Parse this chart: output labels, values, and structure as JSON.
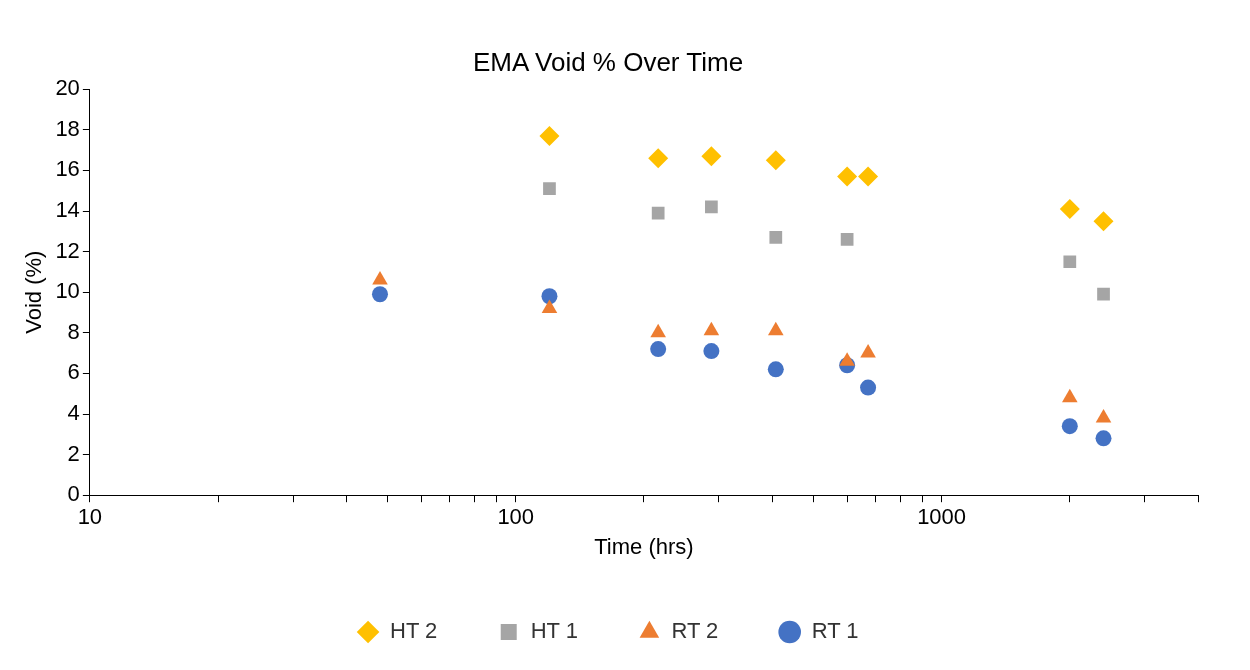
{
  "chart_data": {
    "type": "scatter",
    "title": "EMA Void % Over Time",
    "xlabel": "Time (hrs)",
    "ylabel": "Void (%)",
    "x": [
      48,
      120,
      216,
      288,
      408,
      600,
      672,
      2000,
      2400
    ],
    "series": [
      {
        "name": "HT 2",
        "color": "#ffc000",
        "marker": "diamond",
        "values": [
          null,
          17.7,
          16.6,
          16.7,
          16.5,
          15.7,
          15.7,
          14.1,
          13.5
        ]
      },
      {
        "name": "HT 1",
        "color": "#a5a5a5",
        "marker": "square",
        "values": [
          null,
          15.1,
          13.9,
          14.2,
          12.7,
          12.6,
          null,
          11.5,
          9.9
        ]
      },
      {
        "name": "RT 2",
        "color": "#ed7d31",
        "marker": "triangle",
        "values": [
          10.6,
          9.2,
          8.0,
          8.1,
          8.1,
          6.6,
          7.0,
          4.8,
          3.8
        ]
      },
      {
        "name": "RT 1",
        "color": "#4472c4",
        "marker": "circle",
        "values": [
          9.9,
          9.8,
          7.2,
          7.1,
          6.2,
          6.4,
          5.3,
          3.4,
          2.8
        ]
      }
    ],
    "log": "x",
    "xlim": [
      10,
      4000
    ],
    "xticks": [
      10,
      {
        "value": 20,
        "label": null
      },
      {
        "value": 30,
        "label": null
      },
      {
        "value": 40,
        "label": null
      },
      {
        "value": 50,
        "label": null
      },
      {
        "value": 60,
        "label": null
      },
      {
        "value": 70,
        "label": null
      },
      {
        "value": 80,
        "label": null
      },
      {
        "value": 90,
        "label": null
      },
      100,
      {
        "value": 200,
        "label": null
      },
      {
        "value": 300,
        "label": null
      },
      {
        "value": 400,
        "label": null
      },
      {
        "value": 500,
        "label": null
      },
      {
        "value": 600,
        "label": null
      },
      {
        "value": 700,
        "label": null
      },
      {
        "value": 800,
        "label": null
      },
      {
        "value": 900,
        "label": null
      },
      1000,
      {
        "value": 2000,
        "label": null
      },
      {
        "value": 3000,
        "label": null
      },
      {
        "value": 4000,
        "label": null
      }
    ],
    "ylim": [
      0,
      20
    ],
    "yticks": [
      0,
      2,
      4,
      6,
      8,
      10,
      12,
      14,
      16,
      18,
      20
    ],
    "grid": false,
    "legend": "bottom"
  }
}
